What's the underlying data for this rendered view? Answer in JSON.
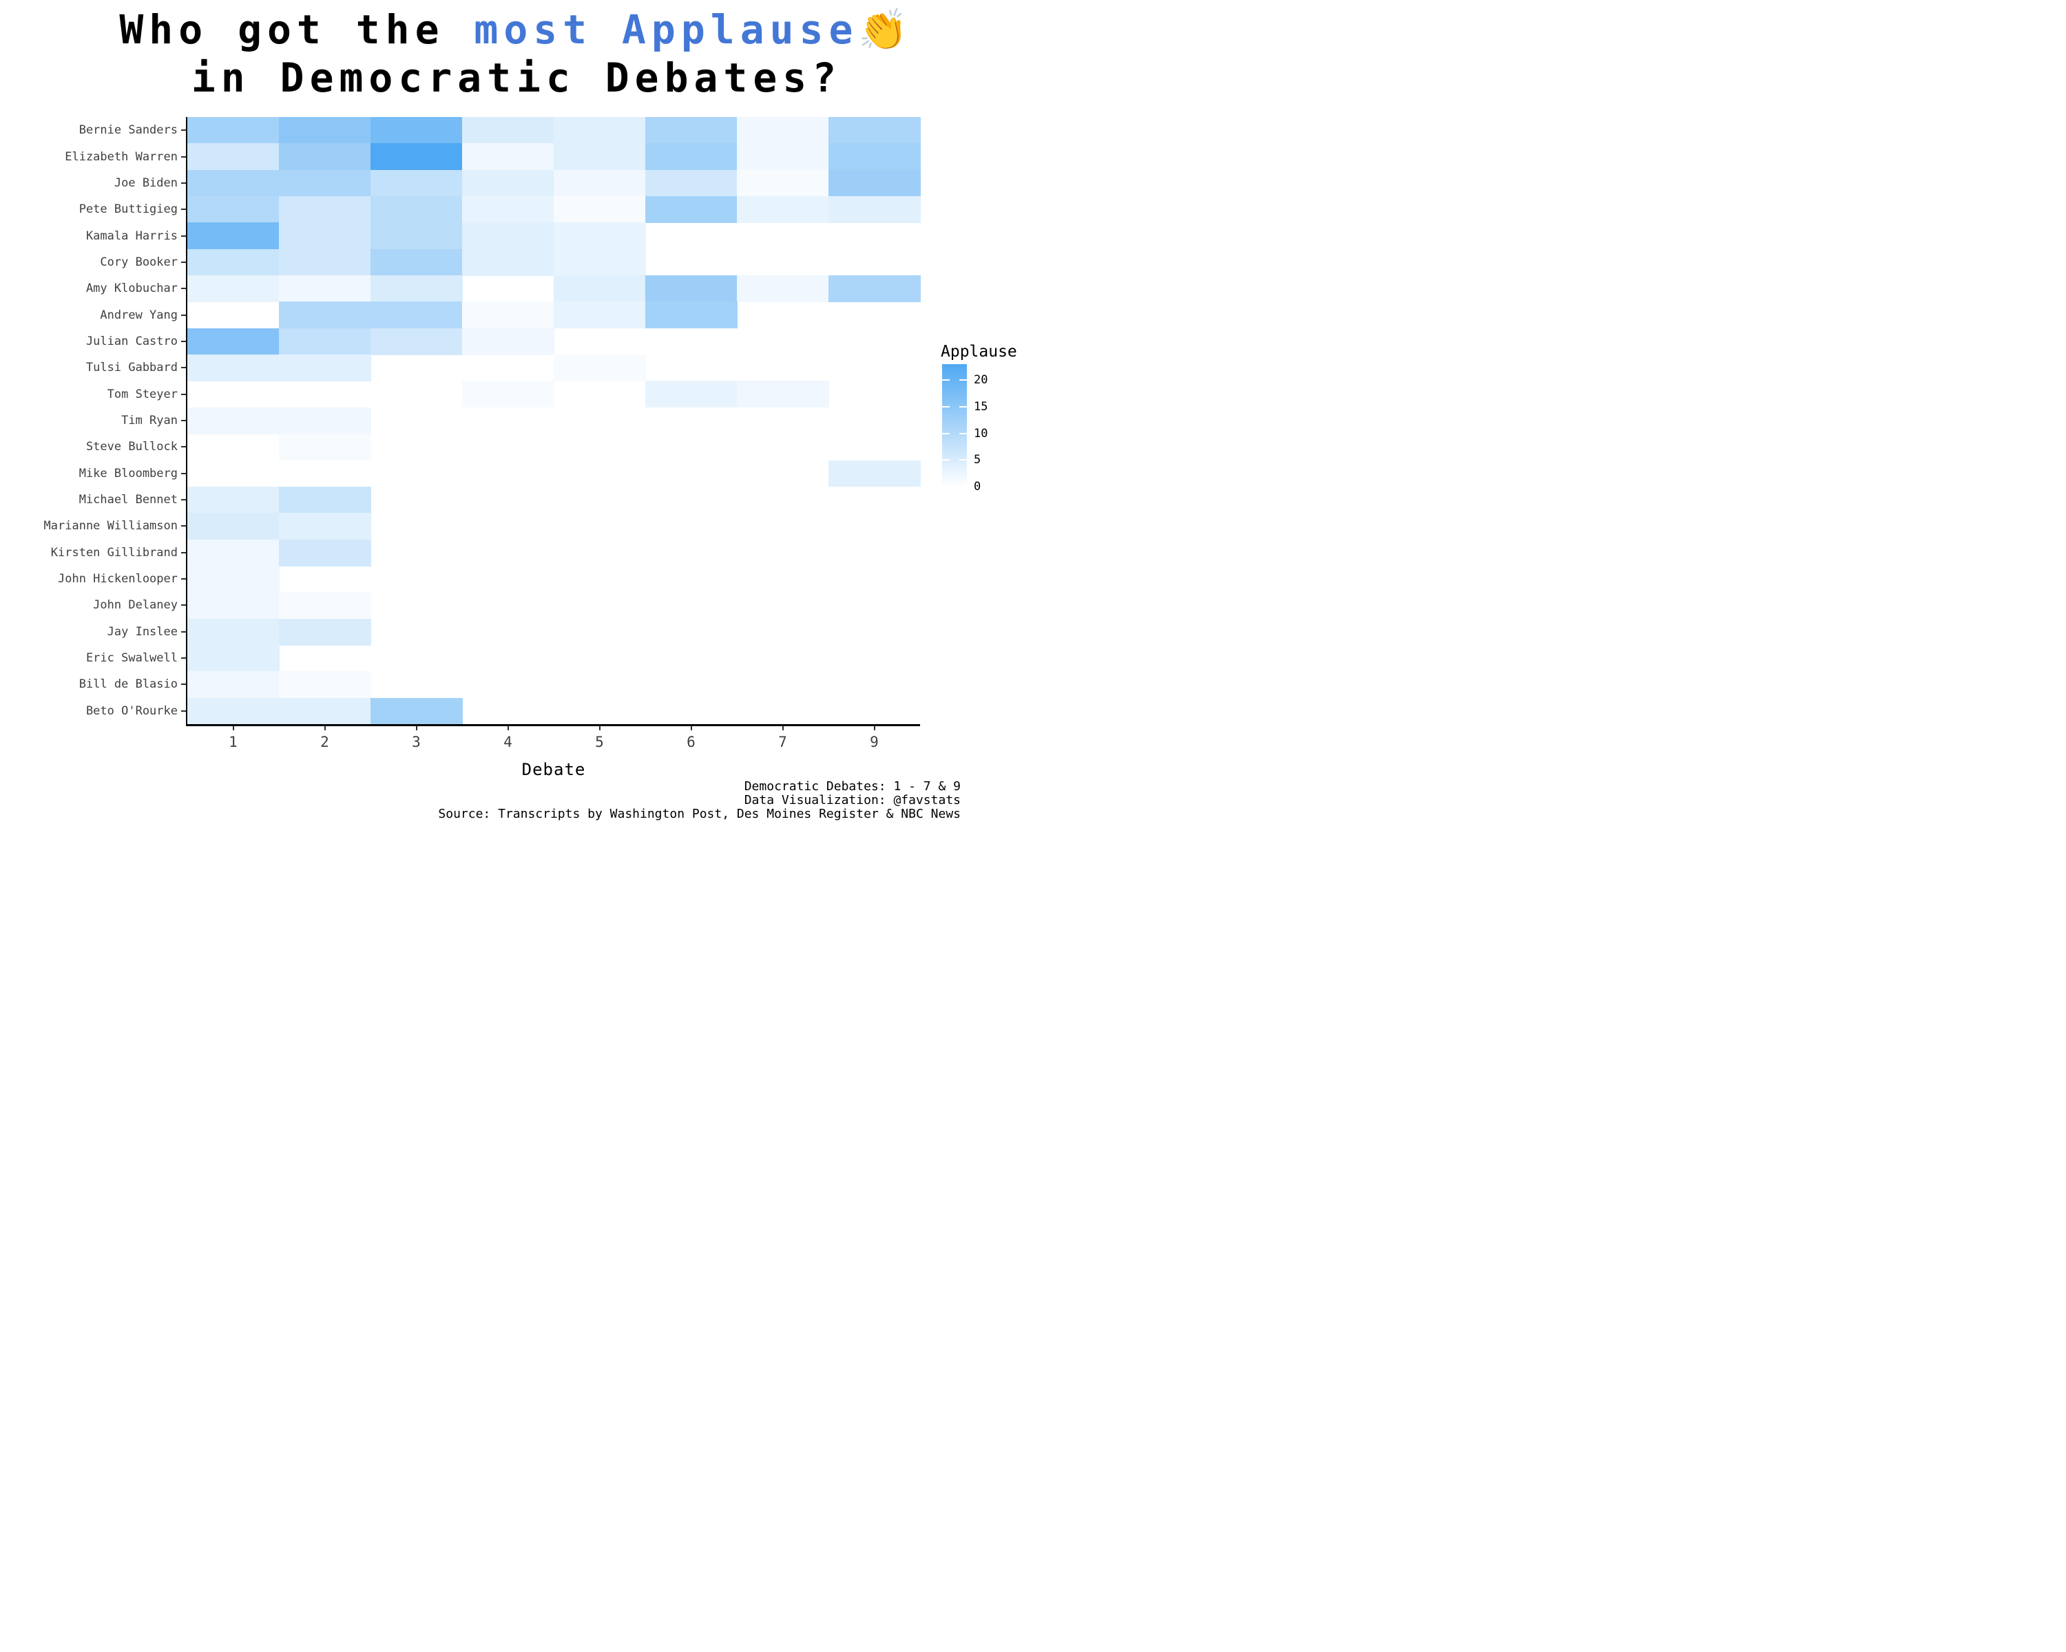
{
  "title": {
    "prefix": "Who got the ",
    "highlight": "most Applause",
    "emoji": "👏",
    "line2": "in Democratic Debates?",
    "highlight_color": "#4377d6",
    "text_color": "#000000"
  },
  "chart_data": {
    "type": "heatmap",
    "title": "Who got the most Applause in Democratic Debates?",
    "xlabel": "Debate",
    "ylabel": "",
    "x_ticks": [
      "1",
      "2",
      "3",
      "4",
      "5",
      "6",
      "7",
      "9"
    ],
    "categories": [
      "Bernie Sanders",
      "Elizabeth Warren",
      "Joe Biden",
      "Pete Buttigieg",
      "Kamala Harris",
      "Cory Booker",
      "Amy Klobuchar",
      "Andrew Yang",
      "Julian Castro",
      "Tulsi Gabbard",
      "Tom Steyer",
      "Tim Ryan",
      "Steve Bullock",
      "Mike Bloomberg",
      "Michael Bennet",
      "Marianne Williamson",
      "Kirsten Gillibrand",
      "John Hickenlooper",
      "John Delaney",
      "Jay Inslee",
      "Eric Swalwell",
      "Bill de Blasio",
      "Beto O'Rourke"
    ],
    "series": [
      {
        "name": "Bernie Sanders",
        "values": [
          12,
          15,
          18,
          5,
          4,
          11,
          2,
          11
        ]
      },
      {
        "name": "Elizabeth Warren",
        "values": [
          6,
          13,
          23,
          2,
          4,
          12,
          2,
          12
        ]
      },
      {
        "name": "Joe Biden",
        "values": [
          11,
          11,
          8,
          4,
          2,
          6,
          1,
          13
        ]
      },
      {
        "name": "Pete Buttigieg",
        "values": [
          10,
          6,
          9,
          3,
          1,
          12,
          3,
          4
        ]
      },
      {
        "name": "Kamala Harris",
        "values": [
          18,
          6,
          9,
          4,
          3,
          null,
          null,
          null
        ]
      },
      {
        "name": "Cory Booker",
        "values": [
          7,
          6,
          11,
          4,
          3,
          null,
          null,
          null
        ]
      },
      {
        "name": "Amy Klobuchar",
        "values": [
          3,
          2,
          5,
          0,
          4,
          13,
          2,
          11
        ]
      },
      {
        "name": "Andrew Yang",
        "values": [
          0,
          10,
          10,
          1,
          3,
          12,
          null,
          null
        ]
      },
      {
        "name": "Julian Castro",
        "values": [
          16,
          8,
          6,
          2,
          0,
          null,
          null,
          null
        ]
      },
      {
        "name": "Tulsi Gabbard",
        "values": [
          4,
          4,
          0,
          0,
          1,
          null,
          null,
          null
        ]
      },
      {
        "name": "Tom Steyer",
        "values": [
          null,
          null,
          null,
          1,
          0,
          3,
          2,
          null
        ]
      },
      {
        "name": "Tim Ryan",
        "values": [
          2,
          2,
          null,
          null,
          null,
          null,
          null,
          null
        ]
      },
      {
        "name": "Steve Bullock",
        "values": [
          null,
          1,
          null,
          null,
          null,
          null,
          null,
          null
        ]
      },
      {
        "name": "Mike Bloomberg",
        "values": [
          null,
          null,
          null,
          null,
          null,
          null,
          null,
          4
        ]
      },
      {
        "name": "Michael Bennet",
        "values": [
          4,
          7,
          null,
          null,
          null,
          null,
          null,
          null
        ]
      },
      {
        "name": "Marianne Williamson",
        "values": [
          5,
          4,
          null,
          null,
          null,
          null,
          null,
          null
        ]
      },
      {
        "name": "Kirsten Gillibrand",
        "values": [
          2,
          6,
          null,
          null,
          null,
          null,
          null,
          null
        ]
      },
      {
        "name": "John Hickenlooper",
        "values": [
          2,
          0,
          null,
          null,
          null,
          null,
          null,
          null
        ]
      },
      {
        "name": "John Delaney",
        "values": [
          2,
          1,
          null,
          null,
          null,
          null,
          null,
          null
        ]
      },
      {
        "name": "Jay Inslee",
        "values": [
          4,
          5,
          null,
          null,
          null,
          null,
          null,
          null
        ]
      },
      {
        "name": "Eric Swalwell",
        "values": [
          4,
          0,
          null,
          null,
          null,
          null,
          null,
          null
        ]
      },
      {
        "name": "Bill de Blasio",
        "values": [
          2,
          1,
          null,
          null,
          null,
          null,
          null,
          null
        ]
      },
      {
        "name": "Beto O'Rourke",
        "values": [
          4,
          4,
          12,
          null,
          null,
          null,
          null,
          null
        ]
      }
    ],
    "scale": {
      "min": 0,
      "max": 23,
      "min_color": "#ffffff",
      "max_color": "#4fa8f3"
    },
    "legend": {
      "title": "Applause",
      "position": "right",
      "ticks": [
        "20",
        "15",
        "10",
        "5",
        "0"
      ],
      "tick_values": [
        20,
        15,
        10,
        5,
        0
      ]
    },
    "grid": false,
    "axis_color": "#000000",
    "label_color": "#3f3f3f"
  },
  "caption": {
    "lines": [
      "Democratic Debates: 1 - 7 & 9",
      "Data Visualization: @favstats",
      "Source: Transcripts by Washington Post, Des Moines Register & NBC News"
    ]
  }
}
